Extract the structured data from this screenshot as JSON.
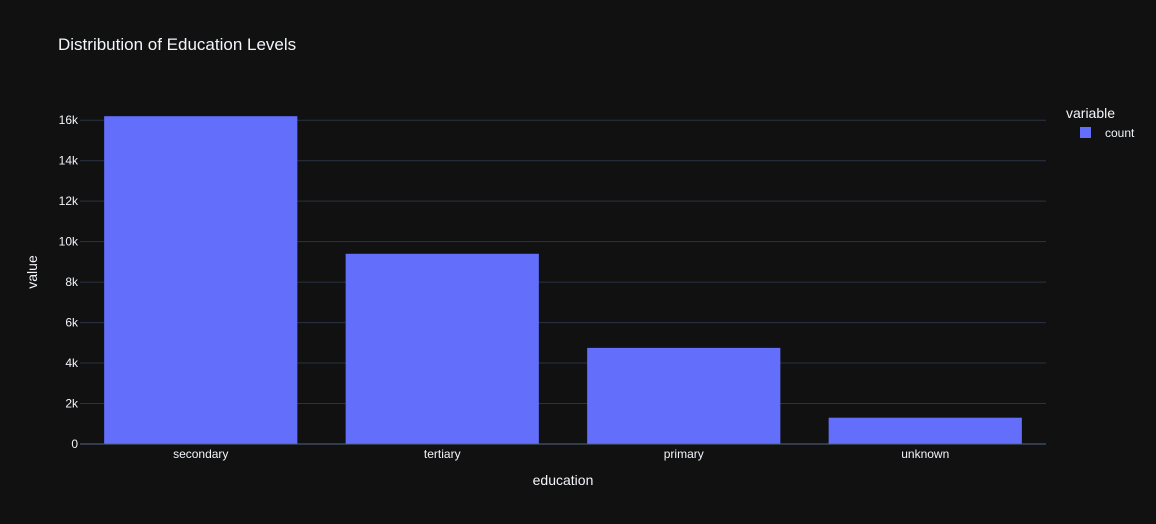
{
  "chart_data": {
    "type": "bar",
    "title": "Distribution of Education Levels",
    "xlabel": "education",
    "ylabel": "value",
    "categories": [
      "secondary",
      "tertiary",
      "primary",
      "unknown"
    ],
    "series": [
      {
        "name": "count",
        "values": [
          16200,
          9400,
          4750,
          1300
        ],
        "color": "#636efa"
      }
    ],
    "ylim": [
      0,
      17000
    ],
    "yticks": [
      0,
      2000,
      4000,
      6000,
      8000,
      10000,
      12000,
      14000,
      16000
    ],
    "ytick_labels": [
      "0",
      "2k",
      "4k",
      "6k",
      "8k",
      "10k",
      "12k",
      "14k",
      "16k"
    ],
    "legend_title": "variable",
    "legend_position": "top-right",
    "grid": true,
    "background": "#111111",
    "text_color": "#f2f5fa",
    "grid_color": "#283442"
  }
}
